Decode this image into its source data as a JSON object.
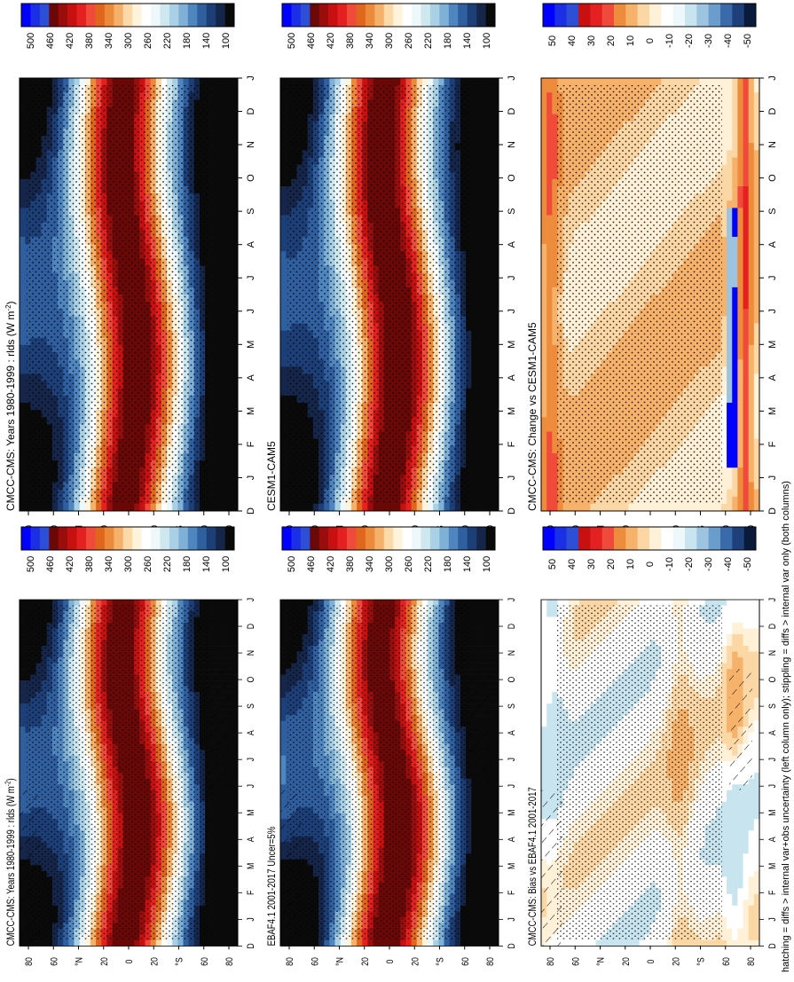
{
  "footnote": "hatching = diffs > internal var+obs uncertainty (left column only); stippling = diffs > internal var only (both columns)",
  "palettes": {
    "absolute": [
      "#0a0a0a",
      "#1a2a5a",
      "#1f4e8c",
      "#3a78b8",
      "#6aa6d3",
      "#9dc8e0",
      "#c8e4ee",
      "#eef8fb",
      "#ffffff",
      "#fff3dc",
      "#fcd9a8",
      "#f5b06a",
      "#eb8a3a",
      "#e0661e",
      "#f04b3a",
      "#e42020",
      "#c81010",
      "#9a0d0d",
      "#6a0808",
      "#2d4fd8",
      "#1a2fe6",
      "#0000ff"
    ],
    "diff": [
      "#0a1a3a",
      "#1f3f7a",
      "#3a6aaa",
      "#6a9ccc",
      "#9cc4e0",
      "#c8e4ee",
      "#eef8fb",
      "#ffffff",
      "#fff0d8",
      "#fcd7a6",
      "#f6b26a",
      "#ec8c3c",
      "#e2661e",
      "#f04b3a",
      "#e42020",
      "#c81010",
      "#2d4fd8",
      "#0000ff"
    ]
  },
  "panels": [
    {
      "title": "CMCC-CMS: Years 1980-1999 : rlds (W m",
      "title_sup": "-2",
      "title_end": ")",
      "kind": "absolute",
      "hatch": true
    },
    {
      "title": "EBAF4.1 2001-2017 Uncer=5%",
      "title_sup": "",
      "title_end": "",
      "kind": "absolute",
      "hatch": true
    },
    {
      "title": "CMCC-CMS: Bias vs EBAF4.1 2001-2017",
      "title_sup": "",
      "title_end": "",
      "kind": "diff",
      "hatch": true
    },
    {
      "title": "CMCC-CMS: Years 1980-1999 : rlds (W m",
      "title_sup": "-2",
      "title_end": ")",
      "kind": "absolute",
      "hatch": false
    },
    {
      "title": "CESM1-CAM5",
      "title_sup": "",
      "title_end": "",
      "kind": "absolute",
      "hatch": false
    },
    {
      "title": "CMCC-CMS: Change vs CESM1-CAM5",
      "title_sup": "",
      "title_end": "",
      "kind": "diff",
      "hatch": false
    }
  ],
  "chart_data": {
    "type": "heatmap",
    "x_ticks": [
      "D",
      "J",
      "F",
      "M",
      "A",
      "M",
      "J",
      "J",
      "A",
      "S",
      "O",
      "N",
      "D",
      "J"
    ],
    "y_ticks": [
      "80",
      "60",
      "°N",
      "20",
      "0",
      "20",
      "°S",
      "60",
      "80"
    ],
    "colorbar_absolute": [
      "500",
      "460",
      "420",
      "380",
      "340",
      "300",
      "260",
      "220",
      "180",
      "140",
      "100"
    ],
    "colorbar_diff": [
      "50",
      "40",
      "30",
      "20",
      "10",
      "0",
      "-10",
      "-20",
      "-30",
      "-40",
      "-50"
    ]
  }
}
